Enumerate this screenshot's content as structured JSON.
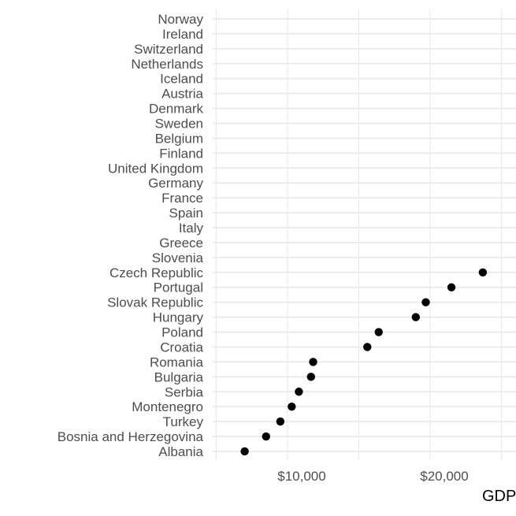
{
  "chart_data": {
    "type": "scatter",
    "xlabel": "GDP",
    "x_ticks": [
      10000,
      20000
    ],
    "x_tick_labels": [
      "$10,000",
      "$20,000"
    ],
    "xlim": [
      4000,
      24000
    ],
    "grid": true,
    "point_color": "#000000",
    "grid_color": "#ebebeb",
    "categories": [
      "Norway",
      "Ireland",
      "Switzerland",
      "Netherlands",
      "Iceland",
      "Austria",
      "Denmark",
      "Sweden",
      "Belgium",
      "Finland",
      "United Kingdom",
      "Germany",
      "France",
      "Spain",
      "Italy",
      "Greece",
      "Slovenia",
      "Czech Republic",
      "Portugal",
      "Slovak Republic",
      "Hungary",
      "Poland",
      "Croatia",
      "Romania",
      "Bulgaria",
      "Serbia",
      "Montenegro",
      "Turkey",
      "Bosnia and Herzegovina",
      "Albania"
    ],
    "points": [
      {
        "country": "Czech Republic",
        "x": 22700
      },
      {
        "country": "Portugal",
        "x": 20500
      },
      {
        "country": "Slovak Republic",
        "x": 18700
      },
      {
        "country": "Hungary",
        "x": 18000
      },
      {
        "country": "Poland",
        "x": 15400
      },
      {
        "country": "Croatia",
        "x": 14600
      },
      {
        "country": "Romania",
        "x": 10800
      },
      {
        "country": "Bulgaria",
        "x": 10650
      },
      {
        "country": "Serbia",
        "x": 9800
      },
      {
        "country": "Montenegro",
        "x": 9300
      },
      {
        "country": "Turkey",
        "x": 8500
      },
      {
        "country": "Bosnia and Herzegovina",
        "x": 7500
      },
      {
        "country": "Albania",
        "x": 6000
      }
    ]
  }
}
